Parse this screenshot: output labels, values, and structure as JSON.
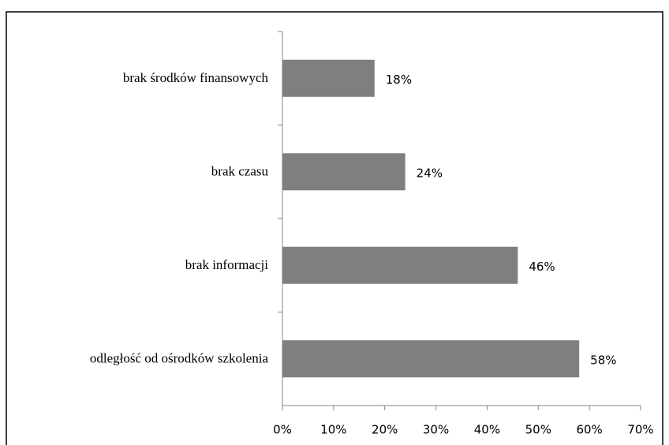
{
  "chart_data": {
    "type": "bar",
    "orientation": "horizontal",
    "categories": [
      "brak środków finansowych",
      "brak czasu",
      "brak informacji",
      "odległość od ośrodków szkolenia"
    ],
    "values": [
      18,
      24,
      46,
      58
    ],
    "value_labels": [
      "18%",
      "24%",
      "46%",
      "58%"
    ],
    "color": "#7f7f7f",
    "xlim": [
      0,
      70
    ],
    "xticks": [
      {
        "value": 0,
        "label": "0%"
      },
      {
        "value": 10,
        "label": "10%"
      },
      {
        "value": 20,
        "label": "20%"
      },
      {
        "value": 30,
        "label": "30%"
      },
      {
        "value": 40,
        "label": "40%"
      },
      {
        "value": 50,
        "label": "50%"
      },
      {
        "value": 60,
        "label": "60%"
      },
      {
        "value": 70,
        "label": "70%"
      }
    ],
    "grid": false
  }
}
